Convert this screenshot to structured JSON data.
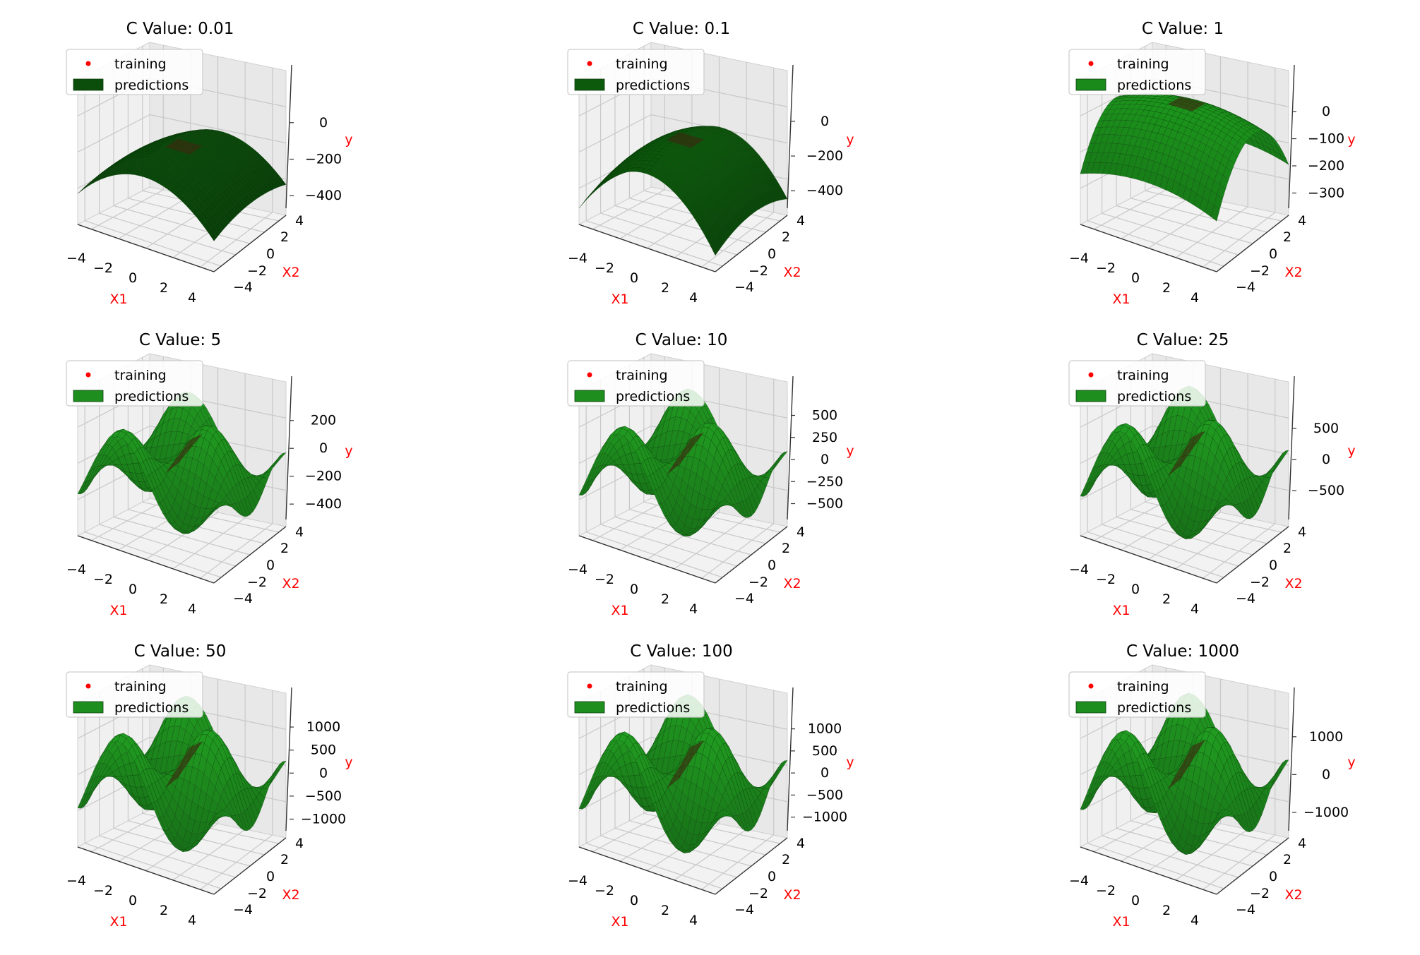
{
  "figure": {
    "background": "#ffffff"
  },
  "legend": {
    "training_label": "training",
    "predictions_label": "predictions",
    "training_color": "#ff0000",
    "location": "upper-left"
  },
  "axes_labels": {
    "x": "X1",
    "y": "X2",
    "z": "y",
    "color": "#ff0000"
  },
  "chart_data": [
    {
      "type": "surface",
      "title": "C Value: 0.01",
      "C": 0.01,
      "surface_color": "#0b4d0b",
      "x_ticks": [
        "−4",
        "−2",
        "0",
        "2",
        "4"
      ],
      "y_ticks": [
        "−4",
        "−2",
        "0",
        "2",
        "4"
      ],
      "z_ticks": [
        "0",
        "−200",
        "−400"
      ],
      "zlim": [
        -430,
        150
      ]
    },
    {
      "type": "surface",
      "title": "C Value: 0.1",
      "C": 0.1,
      "surface_color": "#0d5a0d",
      "x_ticks": [
        "−4",
        "−2",
        "0",
        "2",
        "4"
      ],
      "y_ticks": [
        "−4",
        "−2",
        "0",
        "2",
        "4"
      ],
      "z_ticks": [
        "0",
        "−200",
        "−400"
      ],
      "zlim": [
        -460,
        150
      ]
    },
    {
      "type": "surface",
      "title": "C Value: 1",
      "C": 1,
      "surface_color": "#1a8a1a",
      "x_ticks": [
        "−4",
        "−2",
        "0",
        "2",
        "4"
      ],
      "y_ticks": [
        "−4",
        "−2",
        "0",
        "2",
        "4"
      ],
      "z_ticks": [
        "0",
        "−100",
        "−200",
        "−300"
      ],
      "zlim": [
        -330,
        60
      ]
    },
    {
      "type": "surface",
      "title": "C Value: 5",
      "C": 5,
      "surface_color": "#1e8f1e",
      "x_ticks": [
        "−4",
        "−2",
        "0",
        "2",
        "4"
      ],
      "y_ticks": [
        "−4",
        "−2",
        "0",
        "2",
        "4"
      ],
      "z_ticks": [
        "200",
        "0",
        "−200",
        "−400"
      ],
      "zlim": [
        -460,
        300
      ]
    },
    {
      "type": "surface",
      "title": "C Value: 10",
      "C": 10,
      "surface_color": "#1e8f1e",
      "x_ticks": [
        "−4",
        "−2",
        "0",
        "2",
        "4"
      ],
      "y_ticks": [
        "−4",
        "−2",
        "0",
        "2",
        "4"
      ],
      "z_ticks": [
        "500",
        "250",
        "0",
        "−250",
        "−500"
      ],
      "zlim": [
        -600,
        600
      ]
    },
    {
      "type": "surface",
      "title": "C Value: 25",
      "C": 25,
      "surface_color": "#1e8f1e",
      "x_ticks": [
        "−4",
        "−2",
        "0",
        "2",
        "4"
      ],
      "y_ticks": [
        "−4",
        "−2",
        "0",
        "2",
        "4"
      ],
      "z_ticks": [
        "500",
        "0",
        "−500"
      ],
      "zlim": [
        -850,
        850
      ]
    },
    {
      "type": "surface",
      "title": "C Value: 50",
      "C": 50,
      "surface_color": "#1e8f1e",
      "x_ticks": [
        "−4",
        "−2",
        "0",
        "2",
        "4"
      ],
      "y_ticks": [
        "−4",
        "−2",
        "0",
        "2",
        "4"
      ],
      "z_ticks": [
        "1000",
        "500",
        "0",
        "−500",
        "−1000"
      ],
      "zlim": [
        -1100,
        1200
      ]
    },
    {
      "type": "surface",
      "title": "C Value: 100",
      "C": 100,
      "surface_color": "#1e8f1e",
      "x_ticks": [
        "−4",
        "−2",
        "0",
        "2",
        "4"
      ],
      "y_ticks": [
        "−4",
        "−2",
        "0",
        "2",
        "4"
      ],
      "z_ticks": [
        "1000",
        "500",
        "0",
        "−500",
        "−1000"
      ],
      "zlim": [
        -1150,
        1250
      ]
    },
    {
      "type": "surface",
      "title": "C Value: 1000",
      "C": 1000,
      "surface_color": "#1e8f1e",
      "x_ticks": [
        "−4",
        "−2",
        "0",
        "2",
        "4"
      ],
      "y_ticks": [
        "−4",
        "−2",
        "0",
        "2",
        "4"
      ],
      "z_ticks": [
        "1000",
        "0",
        "−1000"
      ],
      "zlim": [
        -1300,
        1500
      ]
    }
  ]
}
